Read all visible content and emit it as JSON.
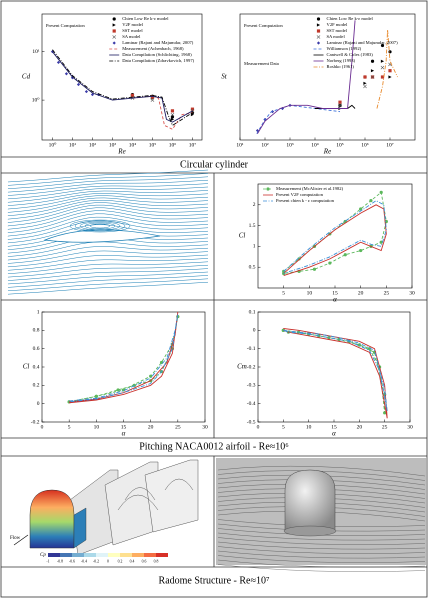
{
  "figure": {
    "captions": [
      "Circular cylinder",
      "Pitching NACA0012 airfoil - Re≈10⁶",
      "Radome Structure - Re≈10⁷"
    ],
    "radome": {
      "flow_label": "Flow",
      "colorbar_label": "Cp",
      "colorbar_ticks": [
        -1,
        -0.8,
        -0.6,
        -0.4,
        -0.2,
        0,
        0.2,
        0.4,
        0.6,
        0.8
      ]
    }
  },
  "chart_data": [
    {
      "type": "line",
      "xlabel": "Re",
      "ylabel": "Cd",
      "xlog": true,
      "ylog": true,
      "xlim": [
        0.3,
        30000000
      ],
      "ylim": [
        0.15,
        60
      ],
      "xticks": [
        {
          "value": 1,
          "label": "10⁰"
        },
        {
          "value": 10,
          "label": "10¹"
        },
        {
          "value": 100,
          "label": "10²"
        },
        {
          "value": 1000,
          "label": "10³"
        },
        {
          "value": 10000,
          "label": "10⁴"
        },
        {
          "value": 100000,
          "label": "10⁵"
        },
        {
          "value": 1000000,
          "label": "10⁶"
        },
        {
          "value": 10000000,
          "label": "10⁷"
        }
      ],
      "yticks": [
        {
          "value": 1,
          "label": "10⁰"
        },
        {
          "value": 10,
          "label": "10¹"
        }
      ],
      "annotations": [
        "Present Computation"
      ],
      "legend": true,
      "series": [
        {
          "name": "Chien Low Re k-ε model",
          "color": "#000000",
          "marker": "circle",
          "x": [
            10000,
            100000,
            1000000,
            10000000
          ],
          "values": [
            1.3,
            1.2,
            0.45,
            0.55
          ]
        },
        {
          "name": "V2F model",
          "color": "#000000",
          "marker": "triangle",
          "x": [
            10000,
            100000,
            1000000,
            10000000
          ],
          "values": [
            1.2,
            1.1,
            0.4,
            0.5
          ]
        },
        {
          "name": "SST model",
          "color": "#c0392b",
          "marker": "square",
          "x": [
            10000,
            100000,
            1000000,
            10000000
          ],
          "values": [
            1.25,
            1.15,
            0.6,
            0.65
          ]
        },
        {
          "name": "SA model",
          "color": "#555555",
          "marker": "x",
          "x": [
            10000,
            100000,
            1000000,
            10000000
          ],
          "values": [
            1.1,
            1.0,
            0.5,
            0.6
          ]
        },
        {
          "name": "Laminar (Rajani and Majumdar, 2007)",
          "color": "#3b3ba8",
          "marker": "diamond",
          "x": [
            1,
            2,
            5,
            10,
            20,
            50,
            100,
            200
          ],
          "values": [
            10,
            6,
            3.5,
            2.9,
            2.1,
            1.5,
            1.3,
            1.3
          ]
        },
        {
          "name": "Measurement (Achenbach, 1968)",
          "color": "#d9534f",
          "dash": "dashed",
          "x": [
            10000,
            100000,
            200000,
            400000,
            1000000,
            3000000,
            10000000
          ],
          "values": [
            1.1,
            1.2,
            1.1,
            0.3,
            0.25,
            0.5,
            0.55
          ]
        },
        {
          "name": "Data Compilation (Schlichting, 1968)",
          "color": "#1a1a60",
          "dash": "solid",
          "x": [
            1,
            10,
            100,
            1000,
            10000,
            100000,
            300000,
            500000,
            1000000,
            10000000
          ],
          "values": [
            10,
            3,
            1.4,
            1,
            1.1,
            1.2,
            1.1,
            0.4,
            0.35,
            0.6
          ]
        },
        {
          "name": "Data Compilation (Zdravkovich, 1997)",
          "color": "#000000",
          "dash": "dashdot",
          "x": [
            1,
            10,
            100,
            1000,
            10000,
            100000,
            300000,
            600000,
            1000000,
            10000000
          ],
          "values": [
            11,
            3.2,
            1.5,
            1.05,
            1.15,
            1.25,
            1.15,
            0.5,
            0.3,
            0.55
          ]
        }
      ]
    },
    {
      "type": "line",
      "xlabel": "Re",
      "ylabel": "St",
      "xlog": true,
      "ylog": false,
      "xlim": [
        10,
        100000000
      ],
      "ylim": [
        0.1,
        0.5
      ],
      "xticks": [
        {
          "value": 10,
          "label": "10¹"
        },
        {
          "value": 100,
          "label": "10²"
        },
        {
          "value": 1000,
          "label": "10³"
        },
        {
          "value": 10000,
          "label": "10⁴"
        },
        {
          "value": 100000,
          "label": "10⁵"
        },
        {
          "value": 1000000,
          "label": "10⁶"
        },
        {
          "value": 10000000,
          "label": "10⁷"
        }
      ],
      "annotations": [
        "Present Computation",
        "Measurement Data"
      ],
      "legend": true,
      "series": [
        {
          "name": "Chien Low Re k-ε model",
          "color": "#000000",
          "marker": "circle",
          "x": [
            100000,
            1000000,
            2000000,
            5000000,
            10000000
          ],
          "values": [
            0.21,
            0.3,
            0.35,
            0.4,
            0.38
          ]
        },
        {
          "name": "V2F model",
          "color": "#000000",
          "marker": "triangle",
          "x": [
            100000,
            1000000,
            2000000,
            5000000,
            10000000
          ],
          "values": [
            0.2,
            0.28,
            0.32,
            0.35,
            0.3
          ]
        },
        {
          "name": "SST model",
          "color": "#c0392b",
          "marker": "square",
          "x": [
            100000,
            1000000,
            2000000,
            5000000,
            10000000
          ],
          "values": [
            0.22,
            0.3,
            0.3,
            0.3,
            0.32
          ]
        },
        {
          "name": "SA model",
          "color": "#555555",
          "marker": "x",
          "x": [
            100000,
            1000000,
            2000000,
            5000000,
            10000000
          ],
          "values": [
            0.21,
            0.27,
            0.3,
            0.33,
            0.34
          ]
        },
        {
          "name": "Laminar (Rajani and Majumdar, 2007)",
          "color": "#3b3ba8",
          "marker": "diamond",
          "x": [
            50,
            100,
            200,
            500,
            1000
          ],
          "values": [
            0.13,
            0.165,
            0.19,
            0.2,
            0.21
          ]
        },
        {
          "name": "Williamson (1992)",
          "color": "#3b6fd8",
          "dash": "dashed",
          "x": [
            47,
            100,
            180,
            1000,
            10000,
            100000
          ],
          "values": [
            0.12,
            0.165,
            0.19,
            0.21,
            0.2,
            0.19
          ]
        },
        {
          "name": "Cantwell & Coles (1983)",
          "color": "#000000",
          "dash": "solid",
          "x": [
            10000,
            100000,
            200000,
            300000,
            400000
          ],
          "values": [
            0.2,
            0.2,
            0.2,
            0.21,
            0.2
          ]
        },
        {
          "name": "Norberg (1993)",
          "color": "#6a2c91",
          "dash": "solid",
          "x": [
            50,
            100,
            200,
            400,
            1000,
            5000,
            20000,
            100000,
            200000,
            300000,
            400000
          ],
          "values": [
            0.12,
            0.16,
            0.18,
            0.2,
            0.21,
            0.21,
            0.2,
            0.2,
            0.2,
            0.35,
            0.48
          ]
        },
        {
          "name": "Roshko (1961)",
          "color": "#e88a2d",
          "dash": "dashdot",
          "x": [
            3000000,
            5000000,
            7000000,
            8000000,
            10000000,
            20000000
          ],
          "values": [
            0.2,
            0.27,
            0.35,
            0.45,
            0.35,
            0.3
          ]
        }
      ]
    },
    {
      "type": "line",
      "xlabel": "α",
      "ylabel": "Cl",
      "xlog": false,
      "ylog": false,
      "xlim": [
        0,
        30
      ],
      "ylim": [
        0,
        2.5
      ],
      "xticks": [
        5,
        10,
        15,
        20,
        25,
        30
      ],
      "yticks": [
        0.5,
        1,
        1.5,
        2
      ],
      "legend": true,
      "series": [
        {
          "name": "Measurement (McAlister et al.1982)",
          "color": "#5cb85c",
          "marker": "circle",
          "dash": "dashed",
          "x": [
            5,
            8,
            11,
            14,
            17,
            20,
            22,
            24,
            25,
            24,
            22,
            20,
            17,
            14,
            11,
            8,
            5
          ],
          "values": [
            0.4,
            0.7,
            1.0,
            1.3,
            1.6,
            1.9,
            2.1,
            2.3,
            1.6,
            1.1,
            1.0,
            0.9,
            0.8,
            0.6,
            0.45,
            0.4,
            0.35
          ]
        },
        {
          "name": "Present V2F computation",
          "color": "#c9302c",
          "dash": "solid",
          "x": [
            5,
            10,
            15,
            20,
            23,
            24.5,
            25,
            24,
            22,
            20,
            17,
            14,
            10,
            5
          ],
          "values": [
            0.35,
            0.9,
            1.4,
            1.8,
            2.0,
            1.9,
            1.3,
            0.9,
            1.0,
            1.1,
            0.9,
            0.7,
            0.5,
            0.3
          ]
        },
        {
          "name": "Present chien k - ε computation",
          "color": "#3b8fd8",
          "dash": "dashdot",
          "x": [
            5,
            10,
            15,
            20,
            23,
            24.5,
            25,
            24,
            22,
            20,
            17,
            14,
            10,
            5
          ],
          "values": [
            0.4,
            0.95,
            1.45,
            1.85,
            2.1,
            2.0,
            1.4,
            1.0,
            1.05,
            1.15,
            0.95,
            0.75,
            0.55,
            0.35
          ]
        }
      ]
    },
    {
      "type": "line",
      "xlabel": "α",
      "ylabel": "Cl",
      "xlog": false,
      "ylog": false,
      "xlim": [
        0,
        30
      ],
      "ylim": [
        -0.2,
        1
      ],
      "xticks": [
        0,
        5,
        10,
        15,
        20,
        25,
        30
      ],
      "yticks": [
        -0.2,
        0,
        0.2,
        0.4,
        0.6,
        0.8,
        1
      ],
      "legend": false,
      "series": [
        {
          "color": "#5cb85c",
          "marker": "circle",
          "dash": "dashed",
          "x": [
            5,
            10,
            15,
            20,
            22,
            24,
            25,
            24,
            22,
            20,
            17,
            14,
            10,
            5
          ],
          "values": [
            0.02,
            0.08,
            0.15,
            0.3,
            0.45,
            0.65,
            0.95,
            0.6,
            0.35,
            0.25,
            0.2,
            0.15,
            0.08,
            0.02
          ]
        },
        {
          "color": "#c9302c",
          "dash": "solid",
          "x": [
            5,
            10,
            15,
            20,
            23,
            24.5,
            25,
            24,
            22,
            20,
            15,
            10,
            5
          ],
          "values": [
            0.02,
            0.05,
            0.12,
            0.25,
            0.45,
            0.75,
            1.0,
            0.55,
            0.3,
            0.2,
            0.1,
            0.04,
            0.01
          ]
        },
        {
          "color": "#3b8fd8",
          "dash": "dashdot",
          "x": [
            5,
            10,
            15,
            20,
            23,
            24.5,
            25,
            24,
            22,
            20,
            15,
            10,
            5
          ],
          "values": [
            0.03,
            0.06,
            0.14,
            0.28,
            0.5,
            0.8,
            0.98,
            0.6,
            0.35,
            0.22,
            0.12,
            0.05,
            0.02
          ]
        }
      ]
    },
    {
      "type": "line",
      "xlabel": "α",
      "ylabel": "Cm",
      "xlog": false,
      "ylog": false,
      "xlim": [
        0,
        30
      ],
      "ylim": [
        -0.5,
        0.1
      ],
      "xticks": [
        0,
        5,
        10,
        15,
        20,
        25,
        30
      ],
      "yticks": [
        -0.5,
        -0.4,
        -0.3,
        -0.2,
        -0.1,
        0,
        0.1
      ],
      "legend": false,
      "series": [
        {
          "color": "#5cb85c",
          "marker": "circle",
          "dash": "dashed",
          "x": [
            5,
            8,
            12,
            16,
            20,
            23,
            25,
            25,
            24,
            22,
            18,
            14,
            10,
            6,
            5
          ],
          "values": [
            0.0,
            -0.01,
            -0.03,
            -0.05,
            -0.08,
            -0.12,
            -0.35,
            -0.45,
            -0.2,
            -0.1,
            -0.06,
            -0.04,
            -0.02,
            -0.01,
            0.0
          ]
        },
        {
          "color": "#c9302c",
          "dash": "solid",
          "x": [
            5,
            8,
            12,
            16,
            20,
            23,
            25,
            25.5,
            24,
            22,
            18,
            14,
            10,
            6,
            5
          ],
          "values": [
            0.01,
            0.0,
            -0.02,
            -0.04,
            -0.06,
            -0.1,
            -0.3,
            -0.48,
            -0.25,
            -0.12,
            -0.07,
            -0.05,
            -0.03,
            -0.01,
            0.0
          ]
        },
        {
          "color": "#3b8fd8",
          "dash": "dashdot",
          "x": [
            5,
            8,
            12,
            16,
            20,
            23,
            25,
            25.5,
            24,
            22,
            18,
            14,
            10,
            6,
            5
          ],
          "values": [
            0.0,
            -0.01,
            -0.02,
            -0.04,
            -0.07,
            -0.11,
            -0.32,
            -0.44,
            -0.22,
            -0.11,
            -0.06,
            -0.04,
            -0.02,
            -0.01,
            0.0
          ]
        }
      ]
    }
  ]
}
